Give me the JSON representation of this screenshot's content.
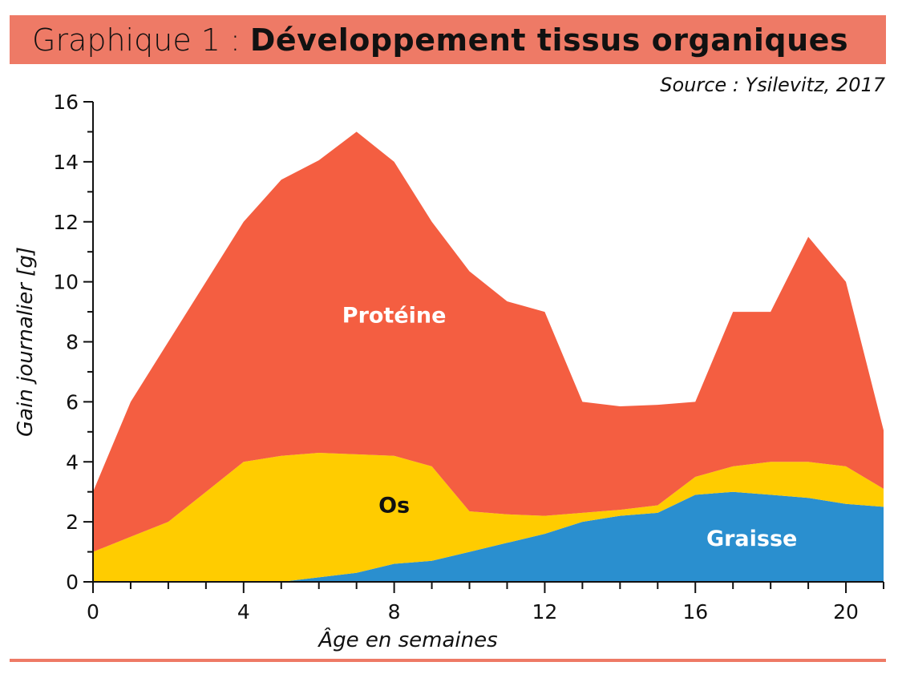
{
  "title": {
    "prefix": "Graphique 1 :",
    "main": "Développement tissus organiques"
  },
  "source": "Source : Ysilevitz, 2017",
  "chart_data": {
    "type": "area",
    "stacked": true,
    "x": [
      0,
      1,
      2,
      3,
      4,
      5,
      6,
      7,
      8,
      9,
      10,
      11,
      12,
      13,
      14,
      15,
      16,
      17,
      18,
      19,
      20,
      21
    ],
    "series": [
      {
        "name": "Graisse",
        "color": "#2a8fcf",
        "label_color": "#ffffff",
        "values": [
          0,
          0,
          0,
          0,
          0,
          0,
          0.15,
          0.3,
          0.6,
          0.7,
          1.0,
          1.3,
          1.6,
          2.0,
          2.2,
          2.3,
          2.9,
          3.0,
          2.9,
          2.8,
          2.6,
          2.5
        ]
      },
      {
        "name": "Os",
        "color": "#ffcc00",
        "label_color": "#111111",
        "values": [
          1.0,
          1.5,
          2.0,
          3.0,
          4.0,
          4.2,
          4.15,
          3.95,
          3.6,
          3.15,
          1.35,
          0.95,
          0.6,
          0.3,
          0.2,
          0.25,
          0.6,
          0.85,
          1.1,
          1.2,
          1.25,
          0.6
        ]
      },
      {
        "name": "Protéine",
        "color": "#f45e41",
        "label_color": "#ffffff",
        "values": [
          2.0,
          4.5,
          6.0,
          7.0,
          8.0,
          9.2,
          9.75,
          10.75,
          9.8,
          8.15,
          8.0,
          7.1,
          6.8,
          3.7,
          3.45,
          3.35,
          2.5,
          5.15,
          5.0,
          7.5,
          6.15,
          1.95
        ]
      }
    ],
    "xlabel": "Âge en semaines",
    "ylabel": "Gain journalier [g]",
    "xlim": [
      0,
      21
    ],
    "ylim": [
      0,
      16
    ],
    "xticks": [
      0,
      4,
      8,
      12,
      16,
      20
    ],
    "yticks": [
      0,
      2,
      4,
      6,
      8,
      10,
      12,
      14,
      16
    ],
    "grid": false
  }
}
